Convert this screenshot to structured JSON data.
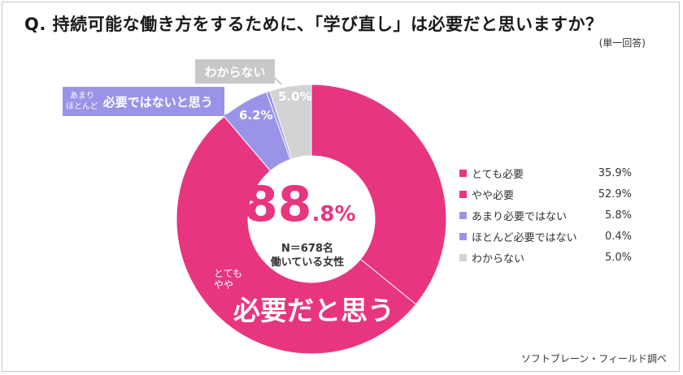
{
  "header": {
    "title": "Q.  持続可能な働き方をするために、「学び直し」は必要だと思いますか？",
    "answer_type": "(単一回答)"
  },
  "chart_data": {
    "type": "pie",
    "title": "Q.  持続可能な働き方をするために、「学び直し」は必要だと思いますか？",
    "categories": [
      "とても必要",
      "やや必要",
      "あまり必要ではない",
      "ほとんど必要ではない",
      "わからない"
    ],
    "values": [
      35.9,
      52.9,
      5.8,
      0.4,
      5.0
    ],
    "value_labels": [
      "35.9%",
      "52.9%",
      "5.8%",
      "0.4%",
      "5.0%"
    ],
    "colors": [
      "#e8357f",
      "#e8357f",
      "#9a94e8",
      "#9a94e8",
      "#d3d3d3"
    ],
    "legend_position": "right",
    "donut": true,
    "groups": {
      "need": {
        "small_lines": [
          "とても",
          "やや"
        ],
        "label": "必要だと思う",
        "total_int": "88",
        "total_dec": ".8%"
      },
      "no_need": {
        "small_lines": [
          "あまり",
          "ほとんど"
        ],
        "label": "必要ではないと思う",
        "pct": "6.2%"
      },
      "unknown": {
        "label": "わからない",
        "pct": "5.0%"
      }
    },
    "sample": {
      "n": "N＝678名",
      "desc": "働いている女性"
    }
  },
  "footer": {
    "source": "ソフトブレーン・フィールド調べ"
  }
}
